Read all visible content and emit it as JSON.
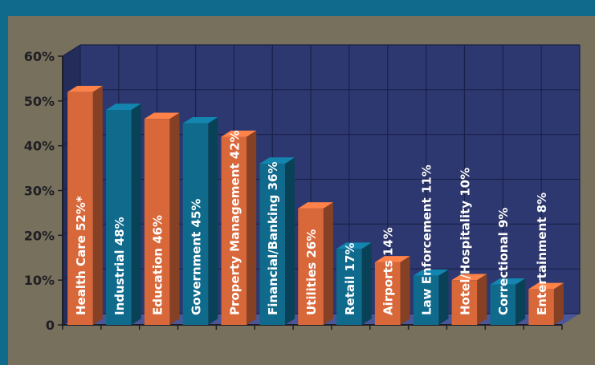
{
  "chart_data": {
    "type": "bar",
    "title": "",
    "xlabel": "",
    "ylabel": "",
    "ylim": [
      0,
      60
    ],
    "yticks": [
      "0",
      "10%",
      "20%",
      "30%",
      "40%",
      "50%",
      "60%"
    ],
    "grid": true,
    "legend": "none",
    "categories": [
      "Health Care 52%*",
      "Industrial 48%",
      "Education 46%",
      "Government 45%",
      "Property Management 42%",
      "Financial/Banking 36%",
      "Utilities 26%",
      "Retail 17%",
      "Airports 14%",
      "Law Enforcement 11%",
      "Hotel/Hospitality 10%",
      "Correctional 9%",
      "Entertainment 8%"
    ],
    "values": [
      52,
      48,
      46,
      45,
      42,
      36,
      26,
      17,
      14,
      11,
      10,
      9,
      8
    ],
    "colors": {
      "orange": "#d8683a",
      "teal": "#0f6a8c",
      "wall": "#2d3870",
      "floor": "#4b5699",
      "grid": "#1a2148",
      "background": "#77705c",
      "frame": "#0f6a8c"
    }
  }
}
